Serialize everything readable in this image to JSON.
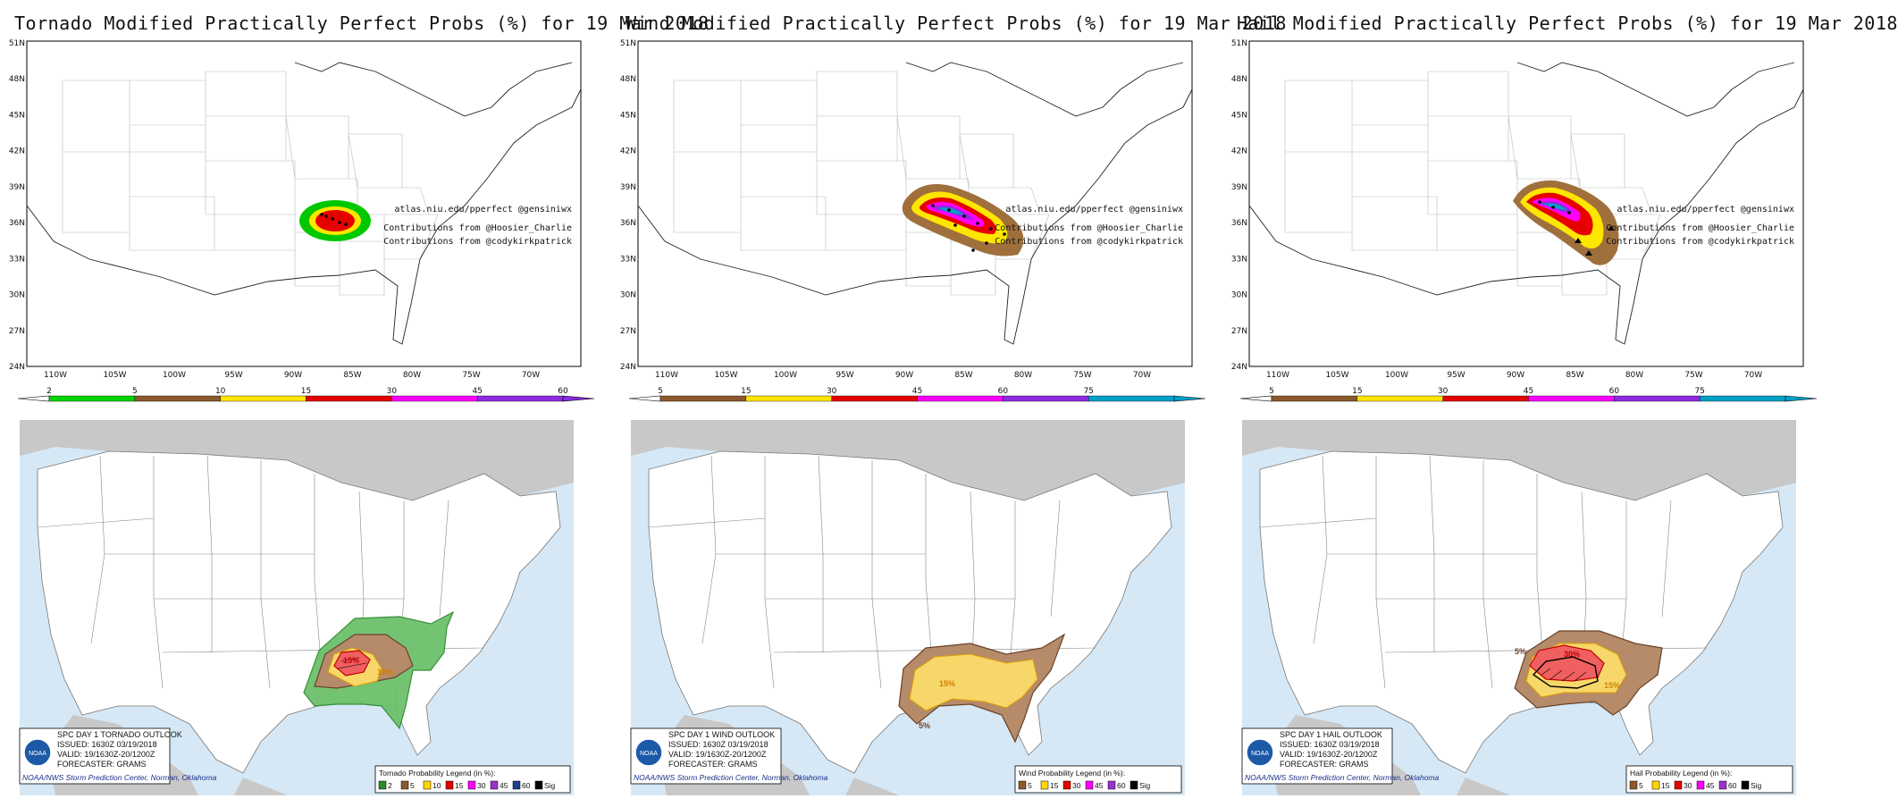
{
  "credits": {
    "site": "atlas.niu.edu/pperfect @gensiniwx",
    "contrib1": "Contributions from @Hoosier_Charlie",
    "contrib2": "Contributions from @codykirkpatrick"
  },
  "lat_labels": [
    "51N",
    "48N",
    "45N",
    "42N",
    "39N",
    "36N",
    "33N",
    "30N",
    "27N",
    "24N"
  ],
  "lon_labels": [
    "110W",
    "105W",
    "100W",
    "95W",
    "90W",
    "85W",
    "80W",
    "75W",
    "70W"
  ],
  "spc_footer": "NOAA/NWS Storm Prediction Center, Norman, Oklahoma",
  "noaa_logo": "NOAA",
  "panels": [
    {
      "id": "tornado",
      "title": "Tornado Modified Practically Perfect Probs (%) for 19 Mar 2018",
      "colorbar_ticks": [
        "2",
        "5",
        "10",
        "15",
        "30",
        "45",
        "60"
      ],
      "colorbar_colors": [
        "#00d400",
        "#8b5a2b",
        "#ffe600",
        "#e60000",
        "#ff00ff",
        "#8a2be2"
      ],
      "spc_header": "SPC DAY 1 TORNADO OUTLOOK",
      "spc_issued": "ISSUED: 1630Z 03/19/2018",
      "spc_valid": "VALID: 19/1630Z-20/1200Z",
      "spc_forecaster": "FORECASTER: GRAMS",
      "legend_title": "Tornado Probability Legend (in %):",
      "legend_items": [
        "2",
        "5",
        "10",
        "15",
        "30",
        "45",
        "60",
        "Sig"
      ],
      "legend_colors": [
        "#2e8b2e",
        "#8b5a2b",
        "#ffd700",
        "#e60000",
        "#ff00ff",
        "#9932cc",
        "#1c3f8c",
        "#000000"
      ],
      "outlook_labels": [
        "15%",
        "10%"
      ]
    },
    {
      "id": "wind",
      "title": "Wind Modified Practically Perfect Probs (%) for 19 Mar 2018",
      "colorbar_ticks": [
        "5",
        "15",
        "30",
        "45",
        "60",
        "75"
      ],
      "colorbar_colors": [
        "#8b5a2b",
        "#ffe600",
        "#e60000",
        "#ff00ff",
        "#8a2be2",
        "#00a0c8"
      ],
      "spc_header": "SPC DAY 1 WIND OUTLOOK",
      "spc_issued": "ISSUED: 1630Z 03/19/2018",
      "spc_valid": "VALID: 19/1630Z-20/1200Z",
      "spc_forecaster": "FORECASTER: GRAMS",
      "legend_title": "Wind Probability Legend (in %):",
      "legend_items": [
        "5",
        "15",
        "30",
        "45",
        "60",
        "Sig"
      ],
      "legend_colors": [
        "#8b5a2b",
        "#ffd700",
        "#e60000",
        "#ff00ff",
        "#9932cc",
        "#000000"
      ],
      "outlook_labels": [
        "15%",
        "5%"
      ]
    },
    {
      "id": "hail",
      "title": "Hail Modified Practically Perfect Probs (%) for 19 Mar 2018",
      "colorbar_ticks": [
        "5",
        "15",
        "30",
        "45",
        "60",
        "75"
      ],
      "colorbar_colors": [
        "#8b5a2b",
        "#ffe600",
        "#e60000",
        "#ff00ff",
        "#8a2be2",
        "#00a0c8"
      ],
      "spc_header": "SPC DAY 1 HAIL OUTLOOK",
      "spc_issued": "ISSUED: 1630Z 03/19/2018",
      "spc_valid": "VALID: 19/1630Z-20/1200Z",
      "spc_forecaster": "FORECASTER: GRAMS",
      "legend_title": "Hail Probability Legend (in %):",
      "legend_items": [
        "5",
        "15",
        "30",
        "45",
        "60",
        "Sig"
      ],
      "legend_colors": [
        "#8b5a2b",
        "#ffd700",
        "#e60000",
        "#ff00ff",
        "#9932cc",
        "#000000"
      ],
      "outlook_labels": [
        "30%",
        "5%",
        "15%"
      ]
    }
  ]
}
